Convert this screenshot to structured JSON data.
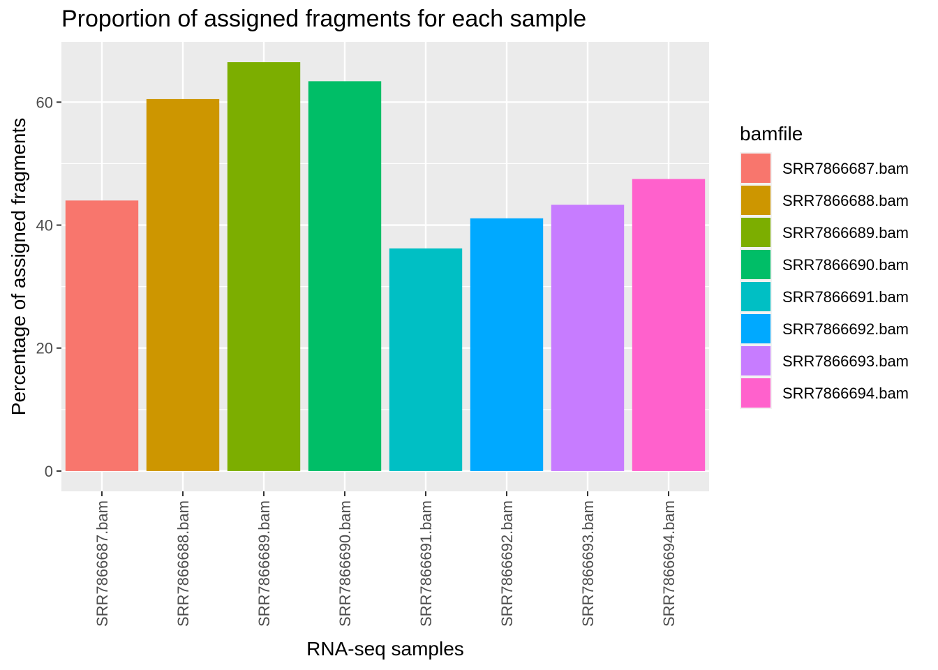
{
  "chart_data": {
    "type": "bar",
    "title": "Proportion of assigned fragments for each sample",
    "xlabel": "RNA-seq samples",
    "ylabel": "Percentage of assigned fragments",
    "categories": [
      "SRR7866687.bam",
      "SRR7866688.bam",
      "SRR7866689.bam",
      "SRR7866690.bam",
      "SRR7866691.bam",
      "SRR7866692.bam",
      "SRR7866693.bam",
      "SRR7866694.bam"
    ],
    "values": [
      44.0,
      60.5,
      66.5,
      63.4,
      36.2,
      41.1,
      43.3,
      47.5
    ],
    "colors": [
      "#F8766D",
      "#CD9600",
      "#7CAE00",
      "#00BE67",
      "#00BFC4",
      "#00A9FF",
      "#C77CFF",
      "#FF61CC"
    ],
    "ylim": [
      -3.3,
      69.8
    ],
    "yticks": [
      0,
      20,
      40,
      60
    ],
    "ytick_labels": [
      "0",
      "20",
      "40",
      "60"
    ],
    "grid": true,
    "panel_background": "#EBEBEB",
    "legend": {
      "title": "bamfile",
      "position": "right",
      "entries": [
        "SRR7866687.bam",
        "SRR7866688.bam",
        "SRR7866689.bam",
        "SRR7866690.bam",
        "SRR7866691.bam",
        "SRR7866692.bam",
        "SRR7866693.bam",
        "SRR7866694.bam"
      ]
    }
  }
}
